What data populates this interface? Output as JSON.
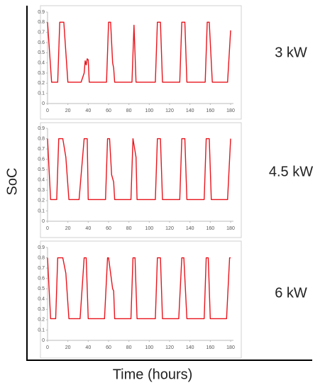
{
  "ylabel": "SoC",
  "xlabel": "Time (hours)",
  "chart_data": [
    {
      "type": "line",
      "title": "3 kW",
      "x": [
        0,
        4,
        10,
        12,
        16,
        20,
        33,
        36,
        37,
        38,
        39,
        40,
        41,
        58,
        60,
        62,
        64,
        65,
        66,
        83,
        85,
        87,
        106,
        108,
        111,
        113,
        130,
        132,
        135,
        137,
        155,
        157,
        159,
        162,
        177,
        180
      ],
      "series": [
        {
          "color": "#e8141c",
          "values": [
            0.8,
            0.21,
            0.21,
            0.8,
            0.8,
            0.21,
            0.21,
            0.3,
            0.42,
            0.38,
            0.44,
            0.43,
            0.21,
            0.21,
            0.8,
            0.8,
            0.4,
            0.35,
            0.21,
            0.21,
            0.77,
            0.21,
            0.21,
            0.8,
            0.8,
            0.21,
            0.21,
            0.8,
            0.8,
            0.21,
            0.21,
            0.8,
            0.8,
            0.21,
            0.21,
            0.72
          ]
        }
      ],
      "xlim": [
        0,
        180
      ],
      "ylim": [
        0,
        0.9
      ],
      "xticks": [
        0,
        20,
        40,
        60,
        80,
        100,
        120,
        140,
        160,
        180
      ],
      "yticks": [
        0,
        0.1,
        0.2,
        0.3,
        0.4,
        0.5,
        0.6,
        0.7,
        0.8,
        0.9
      ]
    },
    {
      "type": "line",
      "title": "4.5 kW",
      "x": [
        0,
        3,
        9,
        11,
        15,
        18,
        21,
        31,
        36,
        39,
        40,
        57,
        59,
        61,
        63,
        65,
        66,
        82,
        84,
        87,
        88,
        106,
        108,
        111,
        113,
        130,
        132,
        135,
        137,
        154,
        156,
        159,
        161,
        177,
        180
      ],
      "series": [
        {
          "color": "#e8141c",
          "values": [
            0.8,
            0.21,
            0.21,
            0.8,
            0.8,
            0.62,
            0.21,
            0.21,
            0.8,
            0.8,
            0.21,
            0.21,
            0.8,
            0.8,
            0.45,
            0.38,
            0.21,
            0.21,
            0.8,
            0.62,
            0.21,
            0.21,
            0.8,
            0.8,
            0.21,
            0.21,
            0.8,
            0.8,
            0.21,
            0.21,
            0.8,
            0.8,
            0.21,
            0.21,
            0.8
          ]
        }
      ],
      "xlim": [
        0,
        180
      ],
      "ylim": [
        0,
        0.9
      ],
      "xticks": [
        0,
        20,
        40,
        60,
        80,
        100,
        120,
        140,
        160,
        180
      ],
      "yticks": [
        0,
        0.1,
        0.2,
        0.3,
        0.4,
        0.5,
        0.6,
        0.7,
        0.8,
        0.9
      ]
    },
    {
      "type": "line",
      "title": "6 kW",
      "x": [
        0,
        3,
        8,
        10,
        15,
        18,
        21,
        32,
        36,
        38,
        40,
        56,
        59,
        60,
        64,
        65,
        66,
        82,
        84,
        86,
        88,
        106,
        108,
        111,
        113,
        129,
        132,
        134,
        137,
        154,
        156,
        158,
        160,
        176,
        179,
        180
      ],
      "series": [
        {
          "color": "#e8141c",
          "values": [
            0.8,
            0.21,
            0.21,
            0.8,
            0.8,
            0.65,
            0.21,
            0.21,
            0.8,
            0.8,
            0.21,
            0.21,
            0.8,
            0.8,
            0.5,
            0.48,
            0.21,
            0.21,
            0.8,
            0.8,
            0.21,
            0.21,
            0.8,
            0.8,
            0.21,
            0.21,
            0.8,
            0.8,
            0.21,
            0.21,
            0.8,
            0.8,
            0.21,
            0.21,
            0.8,
            0.8
          ]
        }
      ],
      "xlim": [
        0,
        180
      ],
      "ylim": [
        0,
        0.9
      ],
      "xticks": [
        0,
        20,
        40,
        60,
        80,
        100,
        120,
        140,
        160,
        180
      ],
      "yticks": [
        0,
        0.1,
        0.2,
        0.3,
        0.4,
        0.5,
        0.6,
        0.7,
        0.8,
        0.9
      ]
    }
  ]
}
